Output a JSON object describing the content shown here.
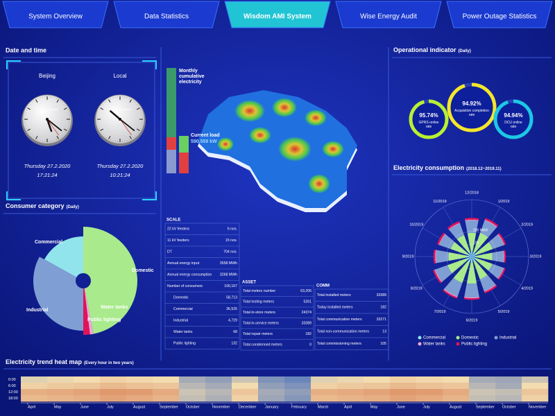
{
  "nav": {
    "tabs": [
      "System Overview",
      "Data Statistics",
      "Wisdom AMI System",
      "Wise Energy Audit",
      "Power Outage Statistics"
    ],
    "active": 2
  },
  "datetime": {
    "title": "Date and time",
    "clocks": [
      {
        "city": "Beijing",
        "brand": "Powered by Wisdom",
        "day": "Thursday  27.2.2020",
        "time": "17:21:24"
      },
      {
        "city": "Local",
        "brand": "Powered by Wisdom",
        "day": "Thursday  27.2.2020",
        "time": "10:21:24"
      }
    ]
  },
  "consumer_category": {
    "title": "Consumer category",
    "qualifier": "(Daily)",
    "type": "pie",
    "categories": [
      "Domestic",
      "Water tanks",
      "Public lighting",
      "Industrial",
      "Commercial"
    ],
    "values": [
      47,
      1,
      2,
      33,
      17
    ],
    "colors": [
      "#a8ea8c",
      "#f2a6d4",
      "#e0145a",
      "#7f9fd4",
      "#92e4ec"
    ]
  },
  "map": {
    "legend": "Monthly cumulative electricity",
    "current_load_label": "Current load",
    "current_load": "590,559 kW"
  },
  "scale": {
    "title": "SCALE",
    "rows": [
      {
        "label": "22 kV feeders",
        "value": "6 nos."
      },
      {
        "label": "11 kV feeders",
        "value": "15 nos."
      },
      {
        "label": "DT",
        "value": "704 nos."
      },
      {
        "label": "Annual energy input",
        "value": "3558 MWh"
      },
      {
        "label": "Annual energy consumption",
        "value": "3268 MWh"
      },
      {
        "label": "Number of consumers",
        "value": "100,167"
      },
      {
        "label": "Domestic",
        "value": "58,713",
        "sub": true
      },
      {
        "label": "Commercial",
        "value": "36,525",
        "sub": true
      },
      {
        "label": "Industrial",
        "value": "4,729",
        "sub": true
      },
      {
        "label": "Water tanks",
        "value": "68",
        "sub": true
      },
      {
        "label": "Public lighting",
        "value": "132",
        "sub": true
      }
    ]
  },
  "asset": {
    "title": "ASSET",
    "rows": [
      {
        "label": "Total meters number",
        "value": "63,206"
      },
      {
        "label": "Total testing meters",
        "value": "5261"
      },
      {
        "label": "Total in-store meters",
        "value": "24374"
      },
      {
        "label": "Total in-service meters",
        "value": "33389"
      },
      {
        "label": "Total repair meters",
        "value": "182"
      },
      {
        "label": "Total condemned meters",
        "value": "0"
      }
    ]
  },
  "comm": {
    "title": "COMM",
    "rows": [
      {
        "label": "Total installed meters",
        "value": "33389"
      },
      {
        "label": "Today installed meters",
        "value": "182"
      },
      {
        "label": "Total communication meters",
        "value": "33271"
      },
      {
        "label": "Total non-communication meters",
        "value": "13"
      },
      {
        "label": "Total commissioning meters",
        "value": "105"
      }
    ]
  },
  "operational": {
    "title": "Operational indicator",
    "qualifier": "(Daily)",
    "gauges": [
      {
        "value": 95.74,
        "value_label": "95.74%",
        "label": "GPRS online rate",
        "color": "#b8f032"
      },
      {
        "value": 94.92,
        "value_label": "94.92%",
        "label": "Acquisition completion rate",
        "color": "#f4e62a"
      },
      {
        "value": 94.94,
        "value_label": "94.94%",
        "label": "DCU online rate",
        "color": "#1cc8e4"
      }
    ]
  },
  "consumption": {
    "title": "Electricity consumption",
    "subtitle": "(2018.12~2019.11)",
    "type": "radial-stacked-bar",
    "categories": [
      "12/2018",
      "1/2019",
      "2/2019",
      "3/2019",
      "4/2019",
      "5/2019",
      "6/2019",
      "7/2019",
      "8/2019",
      "9/2019",
      "10/2019",
      "11/2019"
    ],
    "rlim": [
      0,
      400
    ],
    "rticks": [
      100,
      {
        "value": 200,
        "label": "200 MWh"
      }
    ],
    "series": [
      {
        "name": "Commercial",
        "color": "#92e4ec",
        "values": [
          40,
          42,
          38,
          36,
          40,
          44,
          48,
          50,
          46,
          42,
          40,
          38
        ]
      },
      {
        "name": "Domestic",
        "color": "#a8ea8c",
        "values": [
          150,
          160,
          140,
          130,
          135,
          150,
          170,
          175,
          160,
          145,
          140,
          145
        ]
      },
      {
        "name": "Industrial",
        "color": "#7f9fd4",
        "values": [
          100,
          105,
          95,
          90,
          95,
          100,
          110,
          115,
          105,
          100,
          95,
          98
        ]
      },
      {
        "name": "Water tanks",
        "color": "#f2a6d4",
        "values": [
          6,
          6,
          5,
          5,
          5,
          6,
          7,
          7,
          6,
          6,
          5,
          5
        ]
      },
      {
        "name": "Public lighting",
        "color": "#e0145a",
        "values": [
          14,
          15,
          13,
          12,
          12,
          13,
          12,
          12,
          13,
          14,
          15,
          15
        ]
      }
    ]
  },
  "heatmap": {
    "title": "Electricity trend heat map",
    "subtitle": "(Every hour in two years)",
    "type": "heatmap",
    "rows": [
      "0:00",
      "6:00",
      "12:00",
      "18:00"
    ],
    "columns": [
      "April",
      "May",
      "June",
      "July",
      "August",
      "September",
      "October",
      "November",
      "December",
      "January",
      "February",
      "March",
      "April",
      "May",
      "June",
      "July",
      "August",
      "September",
      "October",
      "November"
    ],
    "vlim": [
      0,
      100
    ],
    "colorscale": [
      "#3060c0",
      "#f2dcb0",
      "#d46a40"
    ],
    "values": [
      [
        45,
        48,
        50,
        55,
        52,
        50,
        30,
        25,
        40,
        20,
        15,
        45,
        48,
        50,
        55,
        52,
        50,
        30,
        28,
        40
      ],
      [
        55,
        58,
        60,
        65,
        62,
        60,
        35,
        30,
        50,
        25,
        20,
        55,
        58,
        60,
        65,
        62,
        60,
        35,
        30,
        50
      ],
      [
        70,
        72,
        75,
        80,
        78,
        72,
        40,
        35,
        60,
        30,
        25,
        70,
        72,
        75,
        80,
        78,
        72,
        40,
        38,
        60
      ],
      [
        65,
        68,
        70,
        75,
        72,
        68,
        38,
        32,
        55,
        28,
        22,
        65,
        68,
        70,
        75,
        72,
        68,
        38,
        35,
        55
      ]
    ]
  }
}
